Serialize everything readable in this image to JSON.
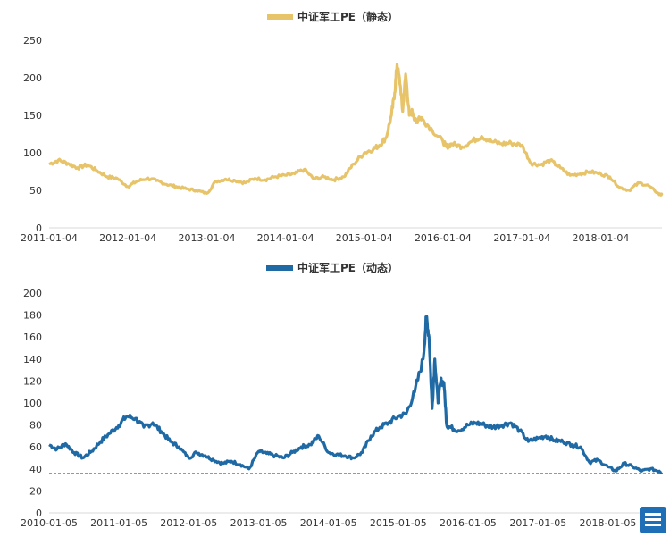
{
  "chart_data": [
    {
      "type": "line",
      "legend": "中证军工PE（静态）",
      "legend_position": "top-center",
      "color": "#e7c46a",
      "ylim": [
        0,
        250
      ],
      "yticks": [
        "0",
        "50",
        "100",
        "150",
        "200",
        "250"
      ],
      "xlim": [
        "2011-01-04",
        "2018-10-15"
      ],
      "xticks": [
        "2011-01-04",
        "2012-01-04",
        "2013-01-04",
        "2014-01-04",
        "2015-01-04",
        "2016-01-04",
        "2017-01-04",
        "2018-01-04"
      ],
      "reference_line": 41,
      "grid": false,
      "series": [
        {
          "x": [
            "2011-01-04",
            "2011-02-15",
            "2011-04-01",
            "2011-05-15",
            "2011-07-01",
            "2011-08-15",
            "2011-10-01",
            "2011-11-15",
            "2012-01-04",
            "2012-02-15",
            "2012-04-01",
            "2012-05-15",
            "2012-07-01",
            "2012-08-15",
            "2012-10-01",
            "2012-11-15",
            "2013-01-04",
            "2013-02-15",
            "2013-04-01",
            "2013-05-15",
            "2013-07-01",
            "2013-08-15",
            "2013-10-01",
            "2013-11-15",
            "2014-01-04",
            "2014-02-15",
            "2014-04-01",
            "2014-05-15",
            "2014-07-01",
            "2014-08-15",
            "2014-10-01",
            "2014-11-15",
            "2015-01-04",
            "2015-02-15",
            "2015-03-15",
            "2015-04-15",
            "2015-05-10",
            "2015-05-25",
            "2015-06-05",
            "2015-06-20",
            "2015-07-01",
            "2015-07-15",
            "2015-08-01",
            "2015-08-15",
            "2015-09-01",
            "2015-09-15",
            "2015-10-01",
            "2015-11-15",
            "2016-01-04",
            "2016-01-20",
            "2016-02-15",
            "2016-04-01",
            "2016-05-15",
            "2016-07-01",
            "2016-08-15",
            "2016-10-01",
            "2016-11-15",
            "2017-01-04",
            "2017-02-15",
            "2017-04-01",
            "2017-05-15",
            "2017-07-01",
            "2017-08-15",
            "2017-10-01",
            "2017-11-15",
            "2018-01-04",
            "2018-02-15",
            "2018-04-01",
            "2018-05-15",
            "2018-07-01",
            "2018-08-15",
            "2018-10-01",
            "2018-10-15"
          ],
          "y": [
            85,
            90,
            86,
            80,
            84,
            76,
            68,
            66,
            55,
            62,
            66,
            63,
            58,
            55,
            52,
            50,
            46,
            62,
            65,
            63,
            60,
            66,
            64,
            68,
            70,
            72,
            78,
            65,
            68,
            64,
            68,
            85,
            100,
            105,
            110,
            120,
            150,
            180,
            218,
            190,
            155,
            205,
            150,
            155,
            140,
            148,
            145,
            130,
            115,
            108,
            112,
            108,
            115,
            122,
            115,
            112,
            113,
            110,
            86,
            84,
            90,
            80,
            70,
            72,
            75,
            72,
            68,
            54,
            50,
            60,
            56,
            45,
            44
          ]
        }
      ]
    },
    {
      "type": "line",
      "legend": "中证军工PE（动态）",
      "legend_position": "top-center",
      "color": "#1f6aa5",
      "ylim": [
        0,
        200
      ],
      "yticks": [
        "0",
        "20",
        "40",
        "60",
        "80",
        "100",
        "120",
        "140",
        "160",
        "180",
        "200"
      ],
      "xlim": [
        "2010-01-05",
        "2018-10-15"
      ],
      "xticks": [
        "2010-01-05",
        "2011-01-05",
        "2012-01-05",
        "2013-01-05",
        "2014-01-05",
        "2015-01-05",
        "2016-01-05",
        "2017-01-05",
        "2018-01-05"
      ],
      "reference_line": 36,
      "grid": false,
      "series": [
        {
          "x": [
            "2010-01-05",
            "2010-02-15",
            "2010-04-01",
            "2010-05-15",
            "2010-07-01",
            "2010-08-15",
            "2010-10-01",
            "2010-11-15",
            "2011-01-05",
            "2011-02-15",
            "2011-04-01",
            "2011-05-15",
            "2011-07-01",
            "2011-08-15",
            "2011-10-01",
            "2011-11-15",
            "2012-01-05",
            "2012-02-15",
            "2012-04-01",
            "2012-05-15",
            "2012-07-01",
            "2012-08-15",
            "2012-10-01",
            "2012-11-15",
            "2013-01-05",
            "2013-02-15",
            "2013-04-01",
            "2013-05-15",
            "2013-07-01",
            "2013-08-15",
            "2013-10-01",
            "2013-11-15",
            "2014-01-05",
            "2014-02-15",
            "2014-04-01",
            "2014-05-15",
            "2014-07-01",
            "2014-08-15",
            "2014-10-01",
            "2014-11-15",
            "2015-01-05",
            "2015-02-15",
            "2015-04-01",
            "2015-05-15",
            "2015-06-01",
            "2015-06-15",
            "2015-07-01",
            "2015-07-15",
            "2015-08-01",
            "2015-08-15",
            "2015-09-01",
            "2015-09-15",
            "2015-10-01",
            "2015-11-15",
            "2016-01-05",
            "2016-02-15",
            "2016-04-01",
            "2016-05-15",
            "2016-07-01",
            "2016-08-15",
            "2016-10-01",
            "2016-11-15",
            "2017-01-05",
            "2017-02-15",
            "2017-04-01",
            "2017-05-15",
            "2017-07-01",
            "2017-08-15",
            "2017-10-01",
            "2017-11-15",
            "2018-01-05",
            "2018-02-15",
            "2018-04-01",
            "2018-05-15",
            "2018-07-01",
            "2018-08-15",
            "2018-10-01",
            "2018-10-15"
          ],
          "y": [
            62,
            58,
            63,
            55,
            50,
            56,
            65,
            72,
            80,
            88,
            86,
            78,
            82,
            74,
            65,
            60,
            50,
            55,
            52,
            48,
            45,
            47,
            44,
            40,
            56,
            54,
            52,
            50,
            55,
            60,
            62,
            70,
            55,
            53,
            52,
            50,
            55,
            70,
            78,
            82,
            88,
            90,
            110,
            140,
            178,
            160,
            95,
            140,
            100,
            120,
            118,
            80,
            78,
            75,
            80,
            82,
            80,
            78,
            80,
            82,
            75,
            65,
            68,
            70,
            66,
            65,
            62,
            60,
            46,
            48,
            42,
            38,
            45,
            42,
            38,
            40,
            38,
            37
          ]
        }
      ]
    }
  ]
}
